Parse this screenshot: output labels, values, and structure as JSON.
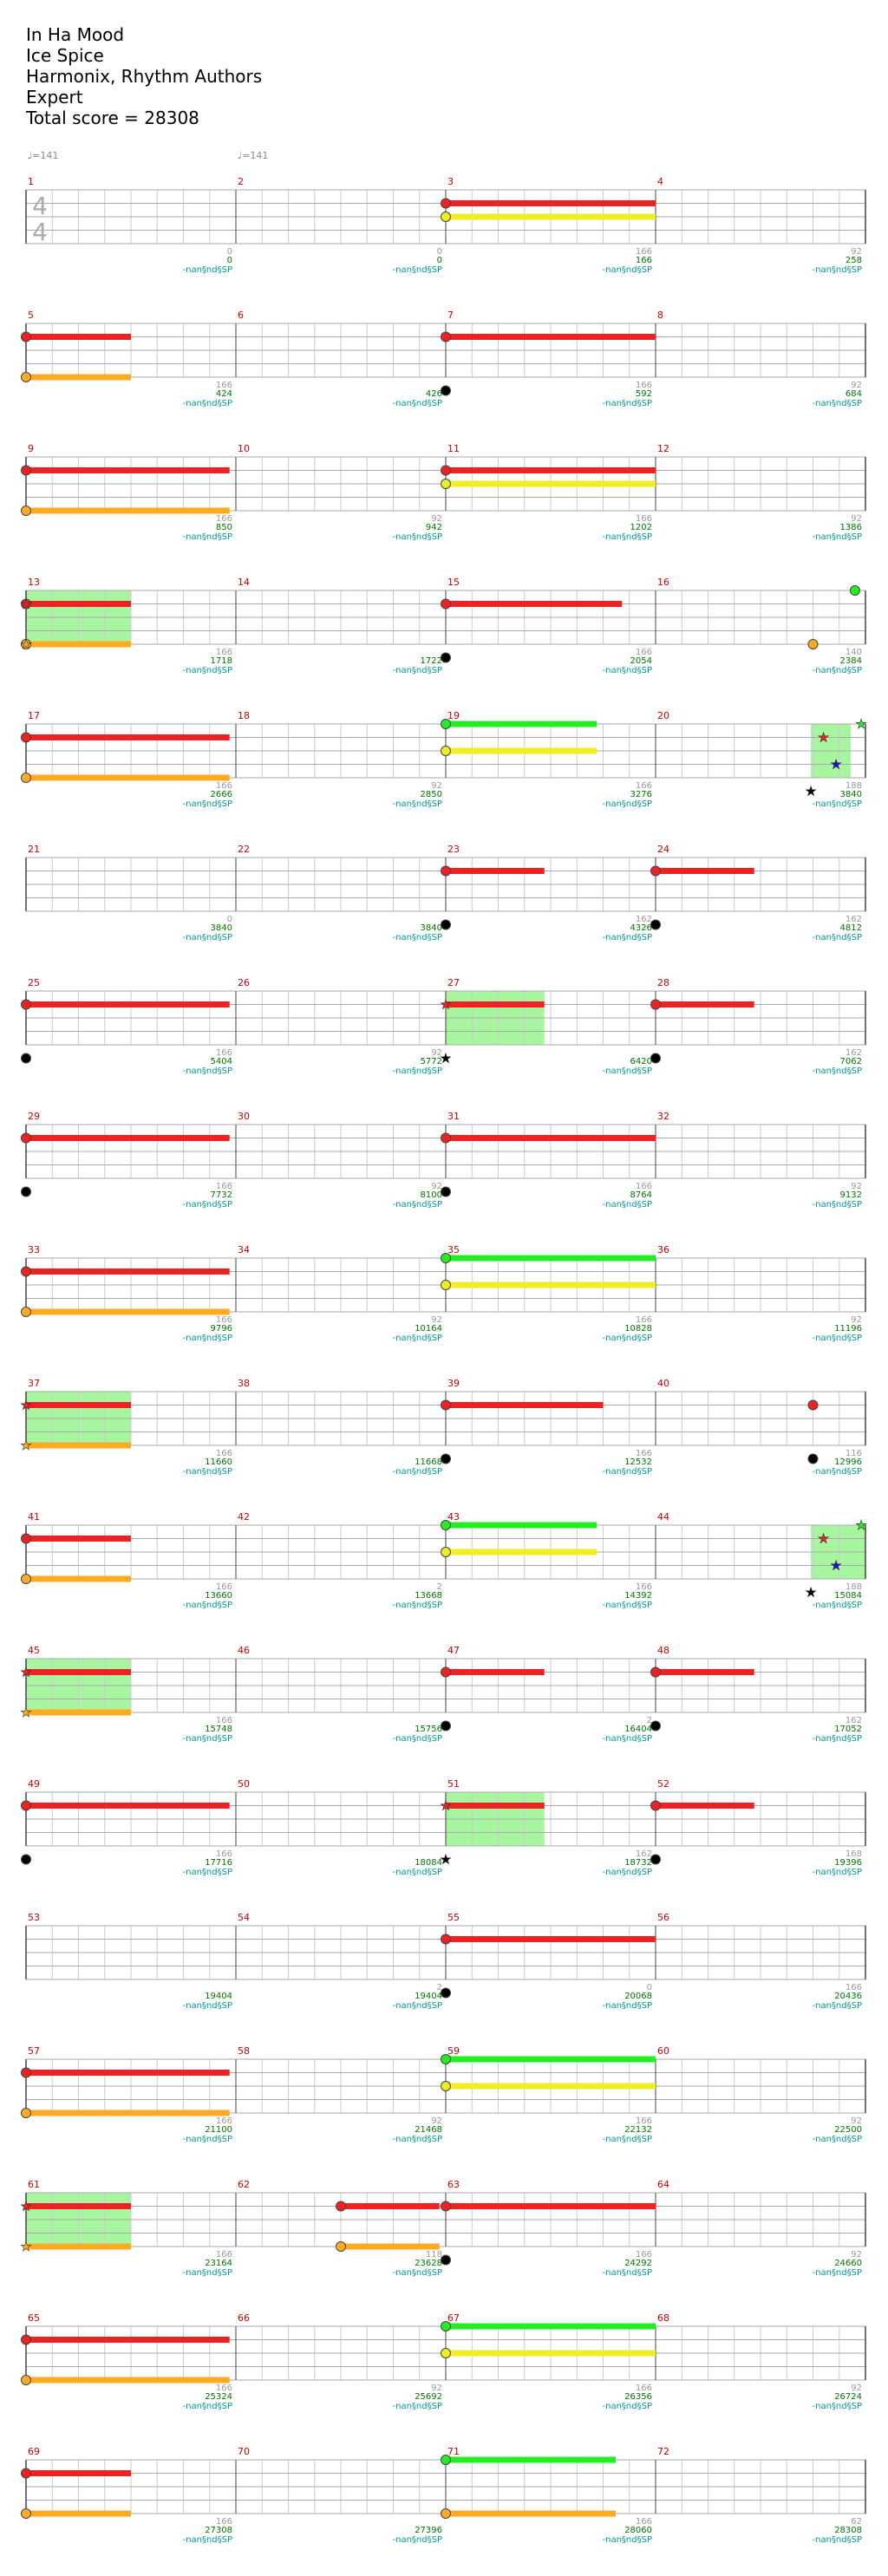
{
  "song": {
    "title": "In Ha Mood",
    "artist": "Ice Spice",
    "charter": "Harmonix, Rhythm Authors",
    "difficulty": "Expert",
    "total_score_label": "Total score = 28308"
  },
  "tempo_markers": [
    {
      "measure": 1,
      "text": "♩=141"
    },
    {
      "measure": 2,
      "text": "♩=141"
    }
  ],
  "time_signature": {
    "top": "4",
    "bottom": "4"
  },
  "colors": {
    "green": "#22ee22",
    "red": "#ee2222",
    "yellow": "#eeee22",
    "blue": "#1111dd",
    "orange": "#ffaa22",
    "star_power": "#a8f5a0",
    "measure_number": "#cc0000",
    "score_text": "#007700",
    "sp_text": "#009999",
    "count_text": "#999999",
    "staff_line": "#aaaaaa"
  },
  "sp_label": "-nan§nd§SP",
  "rows": [
    {
      "measures": [
        1,
        2,
        3,
        4
      ],
      "counts": [
        "0",
        "0",
        "166",
        "92"
      ],
      "scores": [
        "0",
        "0",
        "166",
        "258"
      ],
      "sustains": [
        [
          3,
          1,
          0,
          1
        ],
        [
          3,
          2,
          0,
          1
        ]
      ],
      "notes": [
        [
          3,
          1,
          0
        ],
        [
          3,
          2,
          0
        ]
      ],
      "sp": [],
      "stars": []
    },
    {
      "measures": [
        5,
        6,
        7,
        8
      ],
      "counts": [
        "166",
        "",
        "166",
        "92"
      ],
      "scores": [
        "424",
        "426",
        "592",
        "684"
      ],
      "sustains": [
        [
          1,
          1,
          0,
          0.5
        ],
        [
          1,
          4,
          0,
          0.5
        ],
        [
          3,
          1,
          0,
          1
        ],
        [
          3,
          5,
          0,
          1
        ]
      ],
      "notes": [
        [
          1,
          1,
          0
        ],
        [
          1,
          4,
          0
        ],
        [
          3,
          1,
          0
        ],
        [
          3,
          5,
          0
        ]
      ],
      "sp": [],
      "stars": []
    },
    {
      "measures": [
        9,
        10,
        11,
        12
      ],
      "counts": [
        "166",
        "92",
        "166",
        "92"
      ],
      "scores": [
        "850",
        "942",
        "1202",
        "1386"
      ],
      "sustains": [
        [
          1,
          1,
          0,
          0.97
        ],
        [
          1,
          4,
          0,
          0.97
        ],
        [
          3,
          1,
          0,
          1
        ],
        [
          3,
          2,
          0,
          1
        ]
      ],
      "notes": [
        [
          1,
          1,
          0
        ],
        [
          1,
          4,
          0
        ],
        [
          3,
          1,
          0
        ],
        [
          3,
          2,
          0
        ]
      ],
      "sp": [],
      "stars": []
    },
    {
      "measures": [
        13,
        14,
        15,
        16
      ],
      "counts": [
        "166",
        "",
        "166",
        "140"
      ],
      "scores": [
        "1718",
        "1722",
        "2054",
        "2384"
      ],
      "sustains": [
        [
          1,
          1,
          0,
          0.5
        ],
        [
          1,
          4,
          0,
          0.5
        ],
        [
          3,
          1,
          0,
          0.84
        ],
        [
          3,
          5,
          0,
          0.84
        ]
      ],
      "notes": [
        [
          1,
          1,
          0
        ],
        [
          1,
          4,
          0
        ],
        [
          3,
          1,
          0
        ],
        [
          3,
          5,
          0
        ],
        [
          4,
          0,
          0.95
        ],
        [
          4,
          4,
          0.75
        ]
      ],
      "sp": [
        [
          1,
          0,
          0.5
        ]
      ],
      "stars": [
        [
          1,
          1,
          0
        ],
        [
          1,
          4,
          0
        ]
      ]
    },
    {
      "measures": [
        17,
        18,
        19,
        20
      ],
      "counts": [
        "166",
        "92",
        "166",
        "188"
      ],
      "scores": [
        "2666",
        "2850",
        "3276",
        "3840"
      ],
      "sustains": [
        [
          1,
          1,
          0,
          0.97
        ],
        [
          1,
          4,
          0,
          0.97
        ],
        [
          3,
          0,
          0,
          0.72
        ],
        [
          3,
          2,
          0,
          0.72
        ]
      ],
      "notes": [
        [
          1,
          1,
          0
        ],
        [
          1,
          4,
          0
        ],
        [
          3,
          0,
          0
        ],
        [
          3,
          2,
          0
        ]
      ],
      "sp": [
        [
          4,
          0.74,
          0.93
        ]
      ],
      "stars": [
        [
          4,
          1,
          0.8
        ],
        [
          4,
          3,
          0.86
        ],
        [
          4,
          0,
          0.98
        ],
        [
          4,
          5,
          0.74
        ]
      ]
    },
    {
      "measures": [
        21,
        22,
        23,
        24
      ],
      "counts": [
        "0",
        "",
        "162",
        "162"
      ],
      "scores": [
        "3840",
        "3840",
        "4326",
        "4812"
      ],
      "sustains": [
        [
          3,
          1,
          0,
          0.47
        ],
        [
          3,
          5,
          0,
          0.47
        ],
        [
          4,
          1,
          0,
          0.47
        ],
        [
          4,
          5,
          0,
          0.47
        ]
      ],
      "notes": [
        [
          3,
          1,
          0
        ],
        [
          3,
          5,
          0
        ],
        [
          4,
          1,
          0
        ],
        [
          4,
          5,
          0
        ]
      ],
      "sp": [],
      "stars": []
    },
    {
      "measures": [
        25,
        26,
        27,
        28
      ],
      "counts": [
        "166",
        "92",
        "",
        "162"
      ],
      "scores": [
        "5404",
        "5772",
        "6420",
        "7062"
      ],
      "sustains": [
        [
          1,
          1,
          0,
          0.97
        ],
        [
          1,
          5,
          0,
          0.97
        ],
        [
          3,
          1,
          0,
          0.47
        ],
        [
          3,
          5,
          0,
          0.47
        ],
        [
          4,
          1,
          0,
          0.47
        ],
        [
          4,
          5,
          0,
          0.47
        ]
      ],
      "notes": [
        [
          1,
          1,
          0
        ],
        [
          1,
          5,
          0
        ],
        [
          4,
          1,
          0
        ],
        [
          4,
          5,
          0
        ]
      ],
      "sp": [
        [
          3,
          0,
          0.47
        ]
      ],
      "stars": [
        [
          3,
          1,
          0
        ],
        [
          3,
          5,
          0
        ]
      ]
    },
    {
      "measures": [
        29,
        30,
        31,
        32
      ],
      "counts": [
        "166",
        "92",
        "166",
        "92"
      ],
      "scores": [
        "7732",
        "8100",
        "8764",
        "9132"
      ],
      "sustains": [
        [
          1,
          1,
          0,
          0.97
        ],
        [
          1,
          5,
          0,
          0.97
        ],
        [
          3,
          1,
          0,
          1
        ],
        [
          3,
          5,
          0,
          1
        ]
      ],
      "notes": [
        [
          1,
          1,
          0
        ],
        [
          1,
          5,
          0
        ],
        [
          3,
          1,
          0
        ],
        [
          3,
          5,
          0
        ]
      ],
      "sp": [],
      "stars": []
    },
    {
      "measures": [
        33,
        34,
        35,
        36
      ],
      "counts": [
        "166",
        "92",
        "166",
        "92"
      ],
      "scores": [
        "9796",
        "10164",
        "10828",
        "11196"
      ],
      "sustains": [
        [
          1,
          1,
          0,
          0.97
        ],
        [
          1,
          4,
          0,
          0.97
        ],
        [
          3,
          0,
          0,
          1
        ],
        [
          3,
          2,
          0,
          1
        ]
      ],
      "notes": [
        [
          1,
          1,
          0
        ],
        [
          1,
          4,
          0
        ],
        [
          3,
          0,
          0
        ],
        [
          3,
          2,
          0
        ]
      ],
      "sp": [],
      "stars": []
    },
    {
      "measures": [
        37,
        38,
        39,
        40
      ],
      "counts": [
        "166",
        "",
        "166",
        "116"
      ],
      "scores": [
        "11660",
        "11668",
        "12532",
        "12996"
      ],
      "sustains": [
        [
          1,
          1,
          0,
          0.5
        ],
        [
          1,
          4,
          0,
          0.5
        ],
        [
          3,
          1,
          0,
          0.75
        ],
        [
          3,
          5,
          0,
          0.75
        ]
      ],
      "notes": [
        [
          3,
          1,
          0
        ],
        [
          3,
          5,
          0
        ],
        [
          4,
          1,
          0.75
        ],
        [
          4,
          5,
          0.75
        ]
      ],
      "sp": [
        [
          1,
          0,
          0.5
        ]
      ],
      "stars": [
        [
          1,
          1,
          0
        ],
        [
          1,
          4,
          0
        ]
      ]
    },
    {
      "measures": [
        41,
        42,
        43,
        44
      ],
      "counts": [
        "166",
        "2",
        "166",
        "188"
      ],
      "scores": [
        "13660",
        "13668",
        "14392",
        "15084"
      ],
      "sustains": [
        [
          1,
          1,
          0,
          0.5
        ],
        [
          1,
          4,
          0,
          0.5
        ],
        [
          3,
          0,
          0,
          0.72
        ],
        [
          3,
          2,
          0,
          0.72
        ]
      ],
      "notes": [
        [
          1,
          1,
          0
        ],
        [
          1,
          4,
          0
        ],
        [
          3,
          0,
          0
        ],
        [
          3,
          2,
          0
        ]
      ],
      "sp": [
        [
          4,
          0.74,
          1
        ]
      ],
      "stars": [
        [
          4,
          1,
          0.8
        ],
        [
          4,
          3,
          0.86
        ],
        [
          4,
          0,
          0.98
        ],
        [
          4,
          5,
          0.74
        ]
      ]
    },
    {
      "measures": [
        45,
        46,
        47,
        48
      ],
      "counts": [
        "166",
        "",
        "2",
        "162"
      ],
      "scores": [
        "15748",
        "15756",
        "16404",
        "17052"
      ],
      "sustains": [
        [
          1,
          1,
          0,
          0.5
        ],
        [
          1,
          4,
          0,
          0.5
        ],
        [
          3,
          1,
          0,
          0.47
        ],
        [
          3,
          5,
          0,
          0.47
        ],
        [
          4,
          1,
          0,
          0.47
        ],
        [
          4,
          5,
          0,
          0.47
        ]
      ],
      "notes": [
        [
          3,
          1,
          0
        ],
        [
          3,
          5,
          0
        ],
        [
          4,
          1,
          0
        ],
        [
          4,
          5,
          0
        ]
      ],
      "sp": [
        [
          1,
          0,
          0.5
        ]
      ],
      "stars": [
        [
          1,
          1,
          0
        ],
        [
          1,
          4,
          0
        ]
      ]
    },
    {
      "measures": [
        49,
        50,
        51,
        52
      ],
      "counts": [
        "166",
        "",
        "162",
        "168"
      ],
      "scores": [
        "17716",
        "18084",
        "18732",
        "19396"
      ],
      "sustains": [
        [
          1,
          1,
          0,
          0.97
        ],
        [
          1,
          5,
          0,
          0.97
        ],
        [
          3,
          1,
          0,
          0.47
        ],
        [
          3,
          5,
          0,
          0.47
        ],
        [
          4,
          1,
          0,
          0.47
        ],
        [
          4,
          5,
          0,
          0.47
        ]
      ],
      "notes": [
        [
          1,
          1,
          0
        ],
        [
          1,
          5,
          0
        ],
        [
          4,
          1,
          0
        ],
        [
          4,
          5,
          0
        ]
      ],
      "sp": [
        [
          3,
          0,
          0.47
        ]
      ],
      "stars": [
        [
          3,
          1,
          0
        ],
        [
          3,
          5,
          0
        ]
      ]
    },
    {
      "measures": [
        53,
        54,
        55,
        56
      ],
      "counts": [
        "",
        "2",
        "0",
        "166"
      ],
      "scores": [
        "19404",
        "19404",
        "20068",
        "20436"
      ],
      "sustains": [
        [
          3,
          1,
          0,
          1
        ],
        [
          3,
          5,
          0,
          1
        ]
      ],
      "notes": [
        [
          3,
          1,
          0
        ],
        [
          3,
          5,
          0
        ]
      ],
      "sp": [],
      "stars": []
    },
    {
      "measures": [
        57,
        58,
        59,
        60
      ],
      "counts": [
        "166",
        "92",
        "166",
        "92"
      ],
      "scores": [
        "21100",
        "21468",
        "22132",
        "22500"
      ],
      "sustains": [
        [
          1,
          1,
          0,
          0.97
        ],
        [
          1,
          4,
          0,
          0.97
        ],
        [
          3,
          0,
          0,
          1
        ],
        [
          3,
          2,
          0,
          1
        ]
      ],
      "notes": [
        [
          1,
          1,
          0
        ],
        [
          1,
          4,
          0
        ],
        [
          3,
          0,
          0
        ],
        [
          3,
          2,
          0
        ]
      ],
      "sp": [],
      "stars": []
    },
    {
      "measures": [
        61,
        62,
        63,
        64
      ],
      "counts": [
        "166",
        "118",
        "166",
        "92"
      ],
      "scores": [
        "23164",
        "23628",
        "24292",
        "24660"
      ],
      "sustains": [
        [
          1,
          1,
          0,
          0.5
        ],
        [
          1,
          4,
          0,
          0.5
        ],
        [
          2,
          1,
          0.5,
          0.97
        ],
        [
          2,
          4,
          0.5,
          0.97
        ],
        [
          3,
          1,
          0,
          1
        ],
        [
          3,
          5,
          0,
          1
        ]
      ],
      "notes": [
        [
          2,
          1,
          0.5
        ],
        [
          2,
          4,
          0.5
        ],
        [
          3,
          1,
          0
        ],
        [
          3,
          5,
          0
        ]
      ],
      "sp": [
        [
          1,
          0,
          0.5
        ]
      ],
      "stars": [
        [
          1,
          1,
          0
        ],
        [
          1,
          4,
          0
        ]
      ]
    },
    {
      "measures": [
        65,
        66,
        67,
        68
      ],
      "counts": [
        "166",
        "92",
        "166",
        "92"
      ],
      "scores": [
        "25324",
        "25692",
        "26356",
        "26724"
      ],
      "sustains": [
        [
          1,
          1,
          0,
          0.97
        ],
        [
          1,
          4,
          0,
          0.97
        ],
        [
          3,
          0,
          0,
          1
        ],
        [
          3,
          2,
          0,
          1
        ]
      ],
      "notes": [
        [
          1,
          1,
          0
        ],
        [
          1,
          4,
          0
        ],
        [
          3,
          0,
          0
        ],
        [
          3,
          2,
          0
        ]
      ],
      "sp": [],
      "stars": []
    },
    {
      "measures": [
        69,
        70,
        71,
        72
      ],
      "counts": [
        "166",
        "",
        "166",
        "62"
      ],
      "scores": [
        "27308",
        "27396",
        "28060",
        "28308"
      ],
      "sustains": [
        [
          1,
          1,
          0,
          0.5
        ],
        [
          1,
          4,
          0,
          0.5
        ],
        [
          3,
          0,
          0,
          0.81
        ],
        [
          3,
          4,
          0,
          0.81
        ]
      ],
      "notes": [
        [
          1,
          1,
          0
        ],
        [
          1,
          4,
          0
        ],
        [
          3,
          0,
          0
        ],
        [
          3,
          4,
          0
        ]
      ],
      "sp": [],
      "stars": []
    }
  ]
}
